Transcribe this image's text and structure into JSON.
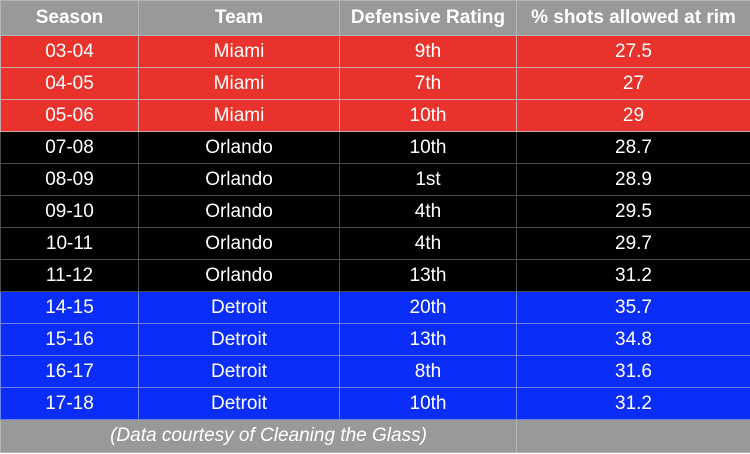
{
  "table": {
    "headers": [
      "Season",
      "Team",
      "Defensive Rating",
      "% shots allowed at rim"
    ],
    "rows": [
      {
        "season": "03-04",
        "team": "Miami",
        "rating": "9th",
        "rim": "27.5"
      },
      {
        "season": "04-05",
        "team": "Miami",
        "rating": "7th",
        "rim": "27"
      },
      {
        "season": "05-06",
        "team": "Miami",
        "rating": "10th",
        "rim": "29"
      },
      {
        "season": "07-08",
        "team": "Orlando",
        "rating": "10th",
        "rim": "28.7"
      },
      {
        "season": "08-09",
        "team": "Orlando",
        "rating": "1st",
        "rim": "28.9"
      },
      {
        "season": "09-10",
        "team": "Orlando",
        "rating": "4th",
        "rim": "29.5"
      },
      {
        "season": "10-11",
        "team": "Orlando",
        "rating": "4th",
        "rim": "29.7"
      },
      {
        "season": "11-12",
        "team": "Orlando",
        "rating": "13th",
        "rim": "31.2"
      },
      {
        "season": "14-15",
        "team": "Detroit",
        "rating": "20th",
        "rim": "35.7"
      },
      {
        "season": "15-16",
        "team": "Detroit",
        "rating": "13th",
        "rim": "34.8"
      },
      {
        "season": "16-17",
        "team": "Detroit",
        "rating": "8th",
        "rim": "31.6"
      },
      {
        "season": "17-18",
        "team": "Detroit",
        "rating": "10th",
        "rim": "31.2"
      }
    ],
    "footnote": "(Data courtesy of Cleaning the Glass)"
  },
  "colors": {
    "header_bg": "#999999",
    "miami": "#e8322b",
    "orlando": "#000000",
    "detroit": "#0b2df9",
    "text": "#ffffff"
  }
}
